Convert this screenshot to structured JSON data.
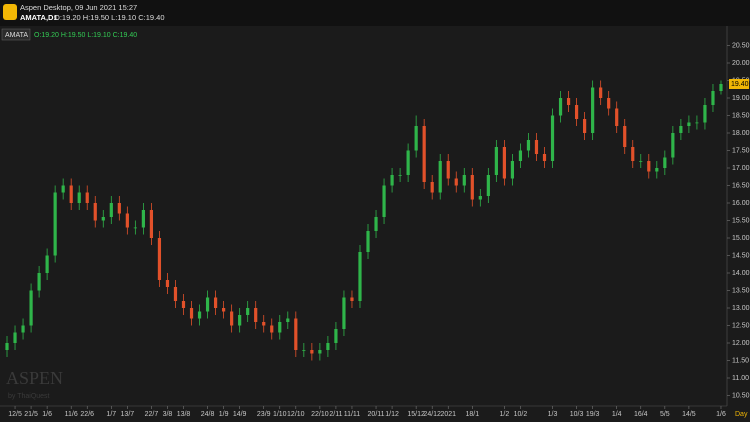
{
  "header": {
    "title": "Aspen Desktop, 09 Jun 2021 15:27",
    "symbol": "AMATA,D1",
    "ohlc": "O:19.20 H:19.50 L:19.10 C:19.40"
  },
  "chart_data": {
    "type": "candlestick",
    "symbol_label": "AMATA",
    "ohlc_label": "O:19.20 H:19.50 L:19.10 C:19.40",
    "watermark": "ASPEN",
    "watermark_sub": "by ThaiQuest",
    "x_unit": "Day",
    "last_price": {
      "value": 19.4,
      "label": "19.40"
    },
    "up_color": "#2fb54a",
    "down_color": "#e2512a",
    "grid": false,
    "categories": [
      null,
      "12/5",
      null,
      "21/5",
      null,
      "1/6",
      null,
      null,
      "11/6",
      null,
      "22/6",
      null,
      null,
      "1/7",
      null,
      "13/7",
      null,
      null,
      "22/7",
      null,
      "3/8",
      null,
      "13/8",
      null,
      null,
      "24/8",
      null,
      "1/9",
      null,
      "14/9",
      null,
      null,
      "23/9",
      null,
      "1/10",
      null,
      "12/10",
      null,
      null,
      "22/10",
      null,
      "2/11",
      null,
      "11/11",
      null,
      null,
      "20/11",
      null,
      "1/12",
      null,
      null,
      "15/12",
      null,
      "24/12",
      null,
      "2021",
      null,
      null,
      "18/1",
      null,
      null,
      null,
      "1/2",
      null,
      "10/2",
      null,
      null,
      null,
      "1/3",
      null,
      null,
      "10/3",
      null,
      "19/3",
      null,
      null,
      "1/4",
      null,
      null,
      "16/4",
      null,
      null,
      "5/5",
      null,
      null,
      "14/5",
      null,
      null,
      null,
      "1/6"
    ],
    "open": [
      11.8,
      12.0,
      12.3,
      12.5,
      13.5,
      14.0,
      14.5,
      16.3,
      16.5,
      16.0,
      16.3,
      16.0,
      15.5,
      15.6,
      16.0,
      15.7,
      15.3,
      15.3,
      15.8,
      15.0,
      13.8,
      13.6,
      13.2,
      13.0,
      12.7,
      12.9,
      13.3,
      13.0,
      12.9,
      12.5,
      12.8,
      13.0,
      12.6,
      12.5,
      12.3,
      12.6,
      12.7,
      11.8,
      11.8,
      11.7,
      11.8,
      12.0,
      12.4,
      13.3,
      13.2,
      14.6,
      15.2,
      15.6,
      16.5,
      16.8,
      16.8,
      17.5,
      18.2,
      16.6,
      16.3,
      17.2,
      16.7,
      16.5,
      16.8,
      16.1,
      16.2,
      16.8,
      17.6,
      16.7,
      17.2,
      17.5,
      17.8,
      17.4,
      17.2,
      18.5,
      19.0,
      18.8,
      18.4,
      18.0,
      19.3,
      19.0,
      18.7,
      18.2,
      17.6,
      17.2,
      17.2,
      16.9,
      17.0,
      17.3,
      18.0,
      18.2,
      18.3,
      18.3,
      18.8,
      19.2
    ],
    "high": [
      12.2,
      12.5,
      12.7,
      13.7,
      14.2,
      14.7,
      16.5,
      16.7,
      16.7,
      16.5,
      16.5,
      16.2,
      15.8,
      16.2,
      16.2,
      15.9,
      15.5,
      16.0,
      16.0,
      15.2,
      14.0,
      13.8,
      13.4,
      13.2,
      13.1,
      13.5,
      13.5,
      13.2,
      13.1,
      13.0,
      13.2,
      13.2,
      12.8,
      12.7,
      12.8,
      12.9,
      12.9,
      12.0,
      12.0,
      12.0,
      12.2,
      12.6,
      13.5,
      13.5,
      14.8,
      15.4,
      15.8,
      16.7,
      17.0,
      17.0,
      17.7,
      18.5,
      18.4,
      16.8,
      17.4,
      17.4,
      16.9,
      17.0,
      17.0,
      16.4,
      17.0,
      17.8,
      17.8,
      17.4,
      17.7,
      18.0,
      18.0,
      17.6,
      18.7,
      19.2,
      19.2,
      19.0,
      18.6,
      19.5,
      19.5,
      19.2,
      18.9,
      18.4,
      17.8,
      17.4,
      17.4,
      17.2,
      17.5,
      18.2,
      18.4,
      18.5,
      18.5,
      19.0,
      19.4,
      19.5
    ],
    "low": [
      11.6,
      11.8,
      12.1,
      12.3,
      13.3,
      13.8,
      14.3,
      16.1,
      15.8,
      15.8,
      15.8,
      15.3,
      15.3,
      15.4,
      15.5,
      15.1,
      15.1,
      15.1,
      14.8,
      13.6,
      13.4,
      13.0,
      12.8,
      12.5,
      12.5,
      12.7,
      12.8,
      12.7,
      12.3,
      12.3,
      12.6,
      12.4,
      12.3,
      12.1,
      12.1,
      12.4,
      11.6,
      11.6,
      11.5,
      11.5,
      11.6,
      11.8,
      12.2,
      13.0,
      13.0,
      14.4,
      15.0,
      15.4,
      16.3,
      16.6,
      16.6,
      17.3,
      16.4,
      16.1,
      16.1,
      16.5,
      16.3,
      16.3,
      15.9,
      15.9,
      16.0,
      16.6,
      16.5,
      16.5,
      17.0,
      17.3,
      17.2,
      17.0,
      17.0,
      18.3,
      18.6,
      18.2,
      17.8,
      17.8,
      18.8,
      18.5,
      18.0,
      17.4,
      17.0,
      17.0,
      16.7,
      16.7,
      16.8,
      17.1,
      17.8,
      18.0,
      18.1,
      18.1,
      18.6,
      19.1
    ],
    "close": [
      12.0,
      12.3,
      12.5,
      13.5,
      14.0,
      14.5,
      16.3,
      16.5,
      16.0,
      16.3,
      16.0,
      15.5,
      15.6,
      16.0,
      15.7,
      15.3,
      15.3,
      15.8,
      15.0,
      13.8,
      13.6,
      13.2,
      13.0,
      12.7,
      12.9,
      13.3,
      13.0,
      12.9,
      12.5,
      12.8,
      13.0,
      12.6,
      12.5,
      12.3,
      12.6,
      12.7,
      11.8,
      11.8,
      11.7,
      11.8,
      12.0,
      12.4,
      13.3,
      13.2,
      14.6,
      15.2,
      15.6,
      16.5,
      16.8,
      16.8,
      17.5,
      18.2,
      16.6,
      16.3,
      17.2,
      16.7,
      16.5,
      16.8,
      16.1,
      16.2,
      16.8,
      17.6,
      16.7,
      17.2,
      17.5,
      17.8,
      17.4,
      17.2,
      18.5,
      19.0,
      18.8,
      18.4,
      18.0,
      19.3,
      19.0,
      18.7,
      18.2,
      17.6,
      17.2,
      17.2,
      16.9,
      17.0,
      17.3,
      18.0,
      18.2,
      18.3,
      18.3,
      18.8,
      19.2,
      19.4
    ],
    "ylim": [
      10.2,
      21.0
    ],
    "yticks": [
      {
        "value": 10.5,
        "label": "10.50"
      },
      {
        "value": 11,
        "label": "11.00"
      },
      {
        "value": 11.5,
        "label": "11.50"
      },
      {
        "value": 12,
        "label": "12.00"
      },
      {
        "value": 12.5,
        "label": "12.50"
      },
      {
        "value": 13,
        "label": "13.00"
      },
      {
        "value": 13.5,
        "label": "13.50"
      },
      {
        "value": 14,
        "label": "14.00"
      },
      {
        "value": 14.5,
        "label": "14.50"
      },
      {
        "value": 15,
        "label": "15.00"
      },
      {
        "value": 15.5,
        "label": "15.50"
      },
      {
        "value": 16,
        "label": "16.00"
      },
      {
        "value": 16.5,
        "label": "16.50"
      },
      {
        "value": 17,
        "label": "17.00"
      },
      {
        "value": 17.5,
        "label": "17.50"
      },
      {
        "value": 18,
        "label": "18.00"
      },
      {
        "value": 18.5,
        "label": "18.50"
      },
      {
        "value": 19,
        "label": "19.00"
      },
      {
        "value": 19.5,
        "label": "19.50"
      },
      {
        "value": 20,
        "label": "20.00"
      },
      {
        "value": 20.5,
        "label": "20.50"
      }
    ]
  }
}
